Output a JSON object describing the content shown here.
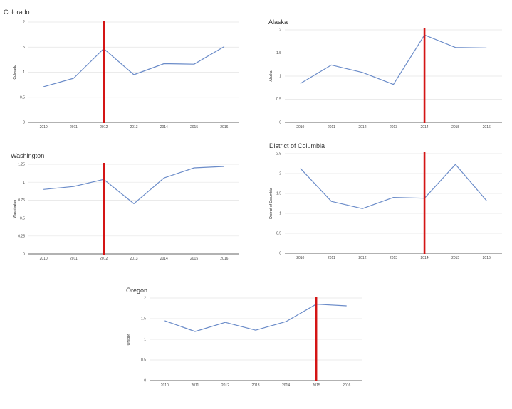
{
  "colors": {
    "series": "#6b8cc9",
    "marker": "#d41515",
    "axis": "#333333",
    "grid": "#e4e4e4"
  },
  "chart_data": [
    {
      "type": "line",
      "title": "Colorado",
      "ylabel": "Colorado",
      "categories": [
        "2010",
        "2011",
        "2012",
        "2013",
        "2014",
        "2015",
        "2016"
      ],
      "values": [
        0.71,
        0.88,
        1.47,
        0.95,
        1.17,
        1.16,
        1.51
      ],
      "ylim": [
        0,
        2
      ],
      "yticks": [
        0,
        0.5,
        1,
        1.5,
        2
      ],
      "ytick_labels": [
        "0",
        "0.5",
        "1",
        "1.5",
        "2"
      ],
      "marker_category": "2012",
      "grid": true
    },
    {
      "type": "line",
      "title": "Alaska",
      "ylabel": "Alaska",
      "categories": [
        "2010",
        "2011",
        "2012",
        "2013",
        "2014",
        "2015",
        "2016"
      ],
      "values": [
        0.84,
        1.24,
        1.08,
        0.82,
        1.89,
        1.62,
        1.61
      ],
      "ylim": [
        0,
        2
      ],
      "yticks": [
        0,
        0.5,
        1,
        1.5,
        2
      ],
      "ytick_labels": [
        "0",
        "0.5",
        "1",
        "1.5",
        "2"
      ],
      "marker_category": "2014",
      "grid": true
    },
    {
      "type": "line",
      "title": "Washington",
      "ylabel": "Washington",
      "categories": [
        "2010",
        "2011",
        "2012",
        "2013",
        "2014",
        "2015",
        "2016"
      ],
      "values": [
        0.9,
        0.94,
        1.04,
        0.7,
        1.06,
        1.2,
        1.22
      ],
      "ylim": [
        0,
        1.25
      ],
      "yticks": [
        0,
        0.25,
        0.5,
        0.75,
        1,
        1.25
      ],
      "ytick_labels": [
        "0",
        "0.25",
        "0.5",
        "0.75",
        "1",
        "1.25"
      ],
      "marker_category": "2012",
      "grid": true
    },
    {
      "type": "line",
      "title": "District of Columbia",
      "ylabel": "District of Columbia",
      "categories": [
        "2010",
        "2011",
        "2012",
        "2013",
        "2014",
        "2015",
        "2016"
      ],
      "values": [
        2.13,
        1.3,
        1.12,
        1.4,
        1.38,
        2.23,
        1.32
      ],
      "ylim": [
        0,
        2.5
      ],
      "yticks": [
        0,
        0.5,
        1,
        1.5,
        2,
        2.5
      ],
      "ytick_labels": [
        "0",
        "0.5",
        "1",
        "1.5",
        "2",
        "2.5"
      ],
      "marker_category": "2014",
      "grid": true
    },
    {
      "type": "line",
      "title": "Oregon",
      "ylabel": "Oregon",
      "categories": [
        "2010",
        "2011",
        "2012",
        "2013",
        "2014",
        "2015",
        "2016"
      ],
      "values": [
        1.45,
        1.19,
        1.41,
        1.22,
        1.43,
        1.85,
        1.81
      ],
      "ylim": [
        0,
        2
      ],
      "yticks": [
        0,
        0.5,
        1,
        1.5,
        2
      ],
      "ytick_labels": [
        "0",
        "0.5",
        "1",
        "1.5",
        "2"
      ],
      "marker_category": "2015",
      "grid": true
    }
  ]
}
